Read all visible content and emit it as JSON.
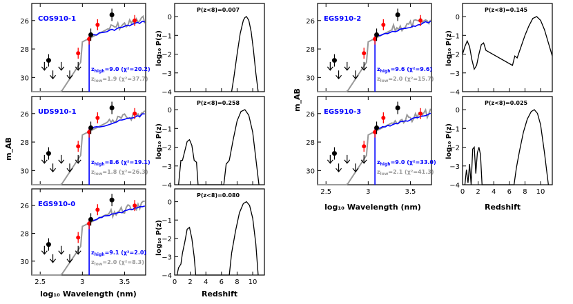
{
  "figure": {
    "sed_xlabel": "log₁₀ Wavelength (nm)",
    "sed_ylabel": "m_AB",
    "pz_xlabel": "Redshift",
    "pz_ylabel": "log₁₀ P(z)",
    "colors": {
      "high_z_fit": "#0000ff",
      "low_z_fit": "#999999",
      "red_points": "#ff0000",
      "black_points": "#000000"
    }
  },
  "chart_data": [
    {
      "type": "line",
      "panel": "sed",
      "name": "COS910-1",
      "xlim": [
        2.4,
        3.75
      ],
      "ylim": [
        31,
        24.8
      ],
      "xticks": [
        "2.5",
        "3",
        "3.5"
      ],
      "yticks": [
        "26",
        "28",
        "30"
      ],
      "zhigh_label": "z",
      "zhigh_value": "9.0",
      "zhigh_chi": "(χ²=20.2)",
      "zlow_value": "1.9",
      "zlow_chi": "(χ²=37.7)",
      "z_high": 9.0,
      "z_low": 1.9
    },
    {
      "type": "line",
      "panel": "pz",
      "title": "P(z<8)=0.007",
      "xlim": [
        0,
        11.5
      ],
      "ylim": [
        -4,
        0.7
      ],
      "xticks": [
        "0",
        "2",
        "4",
        "6",
        "8",
        "10"
      ],
      "yticks": [
        "−4",
        "−3",
        "−2",
        "−1",
        "0"
      ],
      "x": [
        7.3,
        7.6,
        8.0,
        8.4,
        8.8,
        9.0,
        9.2,
        9.5,
        9.8,
        10.1,
        10.4,
        10.7
      ],
      "y": [
        -4,
        -3.2,
        -2.0,
        -0.9,
        -0.2,
        -0.05,
        0,
        -0.2,
        -0.8,
        -1.8,
        -3.0,
        -4
      ]
    },
    {
      "type": "line",
      "panel": "sed",
      "name": "UDS910-1",
      "xlim": [
        2.4,
        3.75
      ],
      "ylim": [
        31,
        24.8
      ],
      "xticks": [
        "2.5",
        "3",
        "3.5"
      ],
      "yticks": [
        "26",
        "28",
        "30"
      ],
      "zhigh_label": "z",
      "zhigh_value": "8.6",
      "zhigh_chi": "(χ²=19.1)",
      "zlow_value": "1.8",
      "zlow_chi": "(χ²=26.3)",
      "z_high": 8.6,
      "z_low": 1.8
    },
    {
      "type": "line",
      "panel": "pz",
      "title": "P(z<8)=0.258",
      "xlim": [
        0,
        11.5
      ],
      "ylim": [
        -4,
        0.7
      ],
      "xticks": [
        "0",
        "2",
        "4",
        "6",
        "8",
        "10"
      ],
      "yticks": [
        "−4",
        "−3",
        "−2",
        "−1",
        "0"
      ],
      "x": [
        0.5,
        0.8,
        1.0,
        1.3,
        1.6,
        1.9,
        2.2,
        2.5,
        2.8,
        3.0,
        6.3,
        6.6,
        7.0,
        7.5,
        8.0,
        8.5,
        9.0,
        9.5,
        10.0,
        10.4,
        10.8
      ],
      "y": [
        -4,
        -2.7,
        -2.7,
        -2.2,
        -1.7,
        -1.6,
        -1.9,
        -2.7,
        -2.8,
        -4,
        -4,
        -2.9,
        -2.7,
        -1.6,
        -0.6,
        -0.1,
        0,
        -0.3,
        -1.2,
        -2.6,
        -4
      ]
    },
    {
      "type": "line",
      "panel": "sed",
      "name": "EGS910-0",
      "xlim": [
        2.4,
        3.75
      ],
      "ylim": [
        31,
        24.8
      ],
      "xticks": [
        "2.5",
        "3",
        "3.5"
      ],
      "yticks": [
        "26",
        "28",
        "30"
      ],
      "zhigh_label": "z",
      "zhigh_value": "9.1",
      "zhigh_chi": "(χ²=2.0)",
      "zlow_value": "2.0",
      "zlow_chi": "(χ²=8.3)",
      "z_high": 9.1,
      "z_low": 2.0
    },
    {
      "type": "line",
      "panel": "pz",
      "title": "P(z<8)=0.080",
      "xlim": [
        0,
        11.5
      ],
      "ylim": [
        -4,
        0.7
      ],
      "xticks": [
        "0",
        "2",
        "4",
        "6",
        "8",
        "10"
      ],
      "yticks": [
        "−4",
        "−3",
        "−2",
        "−1",
        "0"
      ],
      "x": [
        0.3,
        0.5,
        0.8,
        1.0,
        1.3,
        1.6,
        1.9,
        2.2,
        2.5,
        2.7,
        7.0,
        7.3,
        7.8,
        8.3,
        8.8,
        9.2,
        9.6,
        10.0,
        10.4,
        10.7
      ],
      "y": [
        -4,
        -3.6,
        -3.4,
        -2.8,
        -2.2,
        -1.5,
        -1.4,
        -2.0,
        -3.0,
        -4,
        -4,
        -2.8,
        -1.6,
        -0.6,
        -0.1,
        0,
        -0.2,
        -0.9,
        -2.3,
        -4
      ]
    },
    {
      "type": "line",
      "panel": "sed",
      "name": "EGS910-2",
      "xlim": [
        2.4,
        3.75
      ],
      "ylim": [
        31,
        24.8
      ],
      "xticks": [
        "2.5",
        "3",
        "3.5"
      ],
      "yticks": [
        "26",
        "28",
        "30"
      ],
      "zhigh_label": "z",
      "zhigh_value": "9.6",
      "zhigh_chi": "(χ²=9.6)",
      "zlow_value": "2.0",
      "zlow_chi": "(χ²=15.7)",
      "z_high": 9.6,
      "z_low": 2.0
    },
    {
      "type": "line",
      "panel": "pz",
      "title": "P(z<8)=0.145",
      "xlim": [
        0,
        11.5
      ],
      "ylim": [
        -4,
        0.7
      ],
      "xticks": [
        "0",
        "2",
        "4",
        "6",
        "8",
        "10"
      ],
      "yticks": [
        "−4",
        "−3",
        "−2",
        "−1",
        "0"
      ],
      "x": [
        0.0,
        0.3,
        0.6,
        0.9,
        1.2,
        1.5,
        1.8,
        2.1,
        2.4,
        2.7,
        3.0,
        6.4,
        6.7,
        7.0,
        7.5,
        8.0,
        8.5,
        9.0,
        9.5,
        10.0,
        10.5,
        11.0,
        11.5
      ],
      "y": [
        -2.0,
        -1.6,
        -1.3,
        -1.6,
        -2.3,
        -2.8,
        -2.6,
        -2.0,
        -1.5,
        -1.4,
        -1.8,
        -2.6,
        -2.1,
        -2.2,
        -1.6,
        -1.0,
        -0.5,
        -0.1,
        0,
        -0.2,
        -0.7,
        -1.4,
        -2.1
      ]
    },
    {
      "type": "line",
      "panel": "sed",
      "name": "EGS910-3",
      "xlim": [
        2.4,
        3.75
      ],
      "ylim": [
        31,
        24.8
      ],
      "xticks": [
        "2.5",
        "3",
        "3.5"
      ],
      "yticks": [
        "26",
        "28",
        "30"
      ],
      "zhigh_label": "z",
      "zhigh_value": "9.0",
      "zhigh_chi": "(χ²=33.0)",
      "zlow_value": "2.1",
      "zlow_chi": "(χ²=41.3)",
      "z_high": 9.0,
      "z_low": 2.1
    },
    {
      "type": "line",
      "panel": "pz",
      "title": "P(z<8)=0.025",
      "xlim": [
        0,
        11.5
      ],
      "ylim": [
        -4,
        0.7
      ],
      "xticks": [
        "0",
        "2",
        "4",
        "6",
        "8",
        "10"
      ],
      "yticks": [
        "−4",
        "−3",
        "−2",
        "−1",
        "0"
      ],
      "x": [
        0.3,
        0.5,
        0.7,
        0.9,
        1.1,
        1.3,
        1.5,
        1.7,
        1.9,
        2.1,
        2.3,
        2.5,
        6.6,
        6.9,
        7.3,
        7.8,
        8.3,
        8.8,
        9.2,
        9.6,
        10.0,
        10.5,
        11.0
      ],
      "y": [
        -4,
        -3.2,
        -3.9,
        -2.9,
        -4,
        -2.1,
        -2.0,
        -3.4,
        -2.3,
        -2.0,
        -2.4,
        -4,
        -4,
        -3.1,
        -2.2,
        -1.2,
        -0.5,
        -0.1,
        0,
        -0.2,
        -0.8,
        -2.3,
        -4
      ]
    }
  ]
}
